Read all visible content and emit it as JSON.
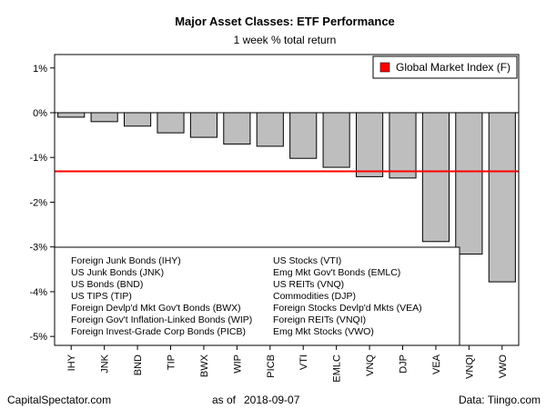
{
  "chart_data": {
    "type": "bar",
    "title": "Major Asset Classes: ETF Performance",
    "subtitle": "1 week % total return",
    "categories": [
      "IHY",
      "JNK",
      "BND",
      "TIP",
      "BWX",
      "WIP",
      "PICB",
      "VTI",
      "EMLC",
      "VNQ",
      "DJP",
      "VEA",
      "VNQI",
      "VWO"
    ],
    "values": [
      -0.1,
      -0.2,
      -0.3,
      -0.45,
      -0.55,
      -0.7,
      -0.75,
      -1.02,
      -1.22,
      -1.43,
      -1.46,
      -2.88,
      -3.16,
      -3.78
    ],
    "ylim": [
      -5.2,
      1.3
    ],
    "yticks": [
      1,
      0,
      -1,
      -2,
      -3,
      -4,
      -5
    ],
    "ytick_labels": [
      "1%",
      "0%",
      "-1%",
      "-2%",
      "-3%",
      "-4%",
      "-5%"
    ],
    "reference_line": {
      "name": "Global Market Index (F)",
      "value": -1.31,
      "color": "#ff0000"
    },
    "bar_color": "#bebebe",
    "legend_placement": "top-right",
    "grid": false,
    "key": [
      [
        "Foreign Junk Bonds (IHY)",
        "US Stocks (VTI)"
      ],
      [
        "US Junk Bonds (JNK)",
        "Emg Mkt Gov't Bonds (EMLC)"
      ],
      [
        "US Bonds (BND)",
        "US REITs (VNQ)"
      ],
      [
        "US TIPS (TIP)",
        "Commodities (DJP)"
      ],
      [
        "Foreign Devlp'd Mkt Gov't Bonds (BWX)",
        "Foreign Stocks Devlp'd Mkts (VEA)"
      ],
      [
        "Foreign Gov't Inflation-Linked Bonds (WIP)",
        "Foreign REITs (VNQI)"
      ],
      [
        "Foreign Invest-Grade Corp Bonds (PICB)",
        "Emg Mkt Stocks (VWO)"
      ]
    ]
  },
  "footer": {
    "source_left": "CapitalSpectator.com",
    "as_of_label": "as of",
    "as_of_date": "2018-09-07",
    "data_source": "Data: Tiingo.com"
  }
}
